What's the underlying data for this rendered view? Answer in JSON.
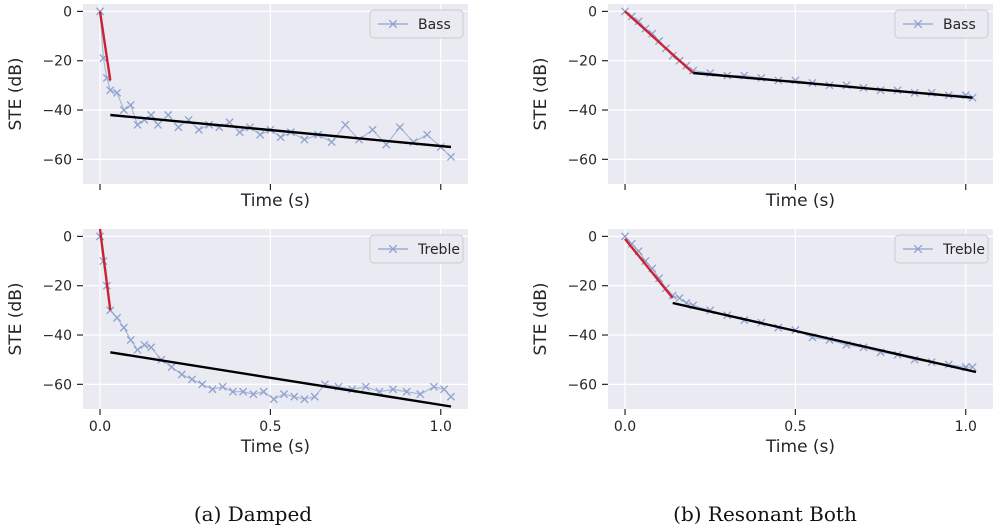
{
  "captions": {
    "left": "(a) Damped",
    "right": "(b) Resonant Both"
  },
  "chart_data": [
    {
      "type": "line",
      "group": "(a) Damped",
      "legend": "Bass",
      "legend_position": "top-right",
      "xlabel": "Time (s)",
      "ylabel": "STE (dB)",
      "xlim": [
        -0.05,
        1.08
      ],
      "ylim": [
        -70,
        3
      ],
      "xticks": [
        0.0,
        0.5,
        1.0
      ],
      "xtick_labels": [
        "",
        "",
        ""
      ],
      "yticks": [
        0,
        -20,
        -40,
        -60
      ],
      "grid": true,
      "series": [
        {
          "name": "Bass",
          "role": "measured",
          "color": "#8ea2cf",
          "marker": "x",
          "x": [
            0.0,
            0.01,
            0.02,
            0.03,
            0.05,
            0.07,
            0.09,
            0.11,
            0.13,
            0.15,
            0.17,
            0.2,
            0.23,
            0.26,
            0.29,
            0.32,
            0.35,
            0.38,
            0.41,
            0.44,
            0.47,
            0.5,
            0.53,
            0.56,
            0.6,
            0.64,
            0.68,
            0.72,
            0.76,
            0.8,
            0.84,
            0.88,
            0.92,
            0.96,
            1.0,
            1.03
          ],
          "y": [
            0,
            -19,
            -27,
            -32,
            -33,
            -40,
            -38,
            -46,
            -44,
            -42,
            -46,
            -42,
            -47,
            -44,
            -48,
            -46,
            -47,
            -45,
            -49,
            -47,
            -50,
            -48,
            -51,
            -49,
            -52,
            -50,
            -53,
            -46,
            -52,
            -48,
            -54,
            -47,
            -53,
            -50,
            -55,
            -59
          ]
        },
        {
          "role": "fit-early",
          "color": "#cc2233",
          "x": [
            0.0,
            0.03
          ],
          "y": [
            0,
            -28
          ]
        },
        {
          "role": "fit-late",
          "color": "#000000",
          "x": [
            0.03,
            1.03
          ],
          "y": [
            -42,
            -55
          ]
        }
      ]
    },
    {
      "type": "line",
      "group": "(a) Damped",
      "legend": "Treble",
      "legend_position": "top-right",
      "xlabel": "Time (s)",
      "ylabel": "STE (dB)",
      "xlim": [
        -0.05,
        1.08
      ],
      "ylim": [
        -70,
        3
      ],
      "xticks": [
        0.0,
        0.5,
        1.0
      ],
      "xtick_labels": [
        "0.0",
        "0.5",
        "1.0"
      ],
      "yticks": [
        0,
        -20,
        -40,
        -60
      ],
      "grid": true,
      "series": [
        {
          "name": "Treble",
          "role": "measured",
          "color": "#8ea2cf",
          "marker": "x",
          "x": [
            0.0,
            0.01,
            0.02,
            0.03,
            0.05,
            0.07,
            0.09,
            0.11,
            0.13,
            0.15,
            0.18,
            0.21,
            0.24,
            0.27,
            0.3,
            0.33,
            0.36,
            0.39,
            0.42,
            0.45,
            0.48,
            0.51,
            0.54,
            0.57,
            0.6,
            0.63,
            0.66,
            0.7,
            0.74,
            0.78,
            0.82,
            0.86,
            0.9,
            0.94,
            0.98,
            1.01,
            1.03
          ],
          "y": [
            0,
            -10,
            -20,
            -30,
            -33,
            -37,
            -42,
            -46,
            -44,
            -45,
            -50,
            -53,
            -56,
            -58,
            -60,
            -62,
            -61,
            -63,
            -63,
            -64,
            -63,
            -66,
            -64,
            -65,
            -66,
            -65,
            -60,
            -61,
            -62,
            -61,
            -63,
            -62,
            -63,
            -64,
            -61,
            -62,
            -65
          ]
        },
        {
          "role": "fit-early",
          "color": "#cc2233",
          "x": [
            0.0,
            0.03
          ],
          "y": [
            3,
            -30
          ]
        },
        {
          "role": "fit-late",
          "color": "#000000",
          "x": [
            0.03,
            1.03
          ],
          "y": [
            -47,
            -69
          ]
        }
      ]
    },
    {
      "type": "line",
      "group": "(b) Resonant Both",
      "legend": "Bass",
      "legend_position": "top-right",
      "xlabel": "Time (s)",
      "ylabel": "STE (dB)",
      "xlim": [
        -0.05,
        1.08
      ],
      "ylim": [
        -70,
        3
      ],
      "xticks": [
        0.0,
        0.5,
        1.0
      ],
      "xtick_labels": [
        "",
        "",
        ""
      ],
      "yticks": [
        0,
        -20,
        -40,
        -60
      ],
      "grid": true,
      "series": [
        {
          "name": "Bass",
          "role": "measured",
          "color": "#8ea2cf",
          "marker": "x",
          "x": [
            0.0,
            0.02,
            0.04,
            0.06,
            0.08,
            0.1,
            0.12,
            0.14,
            0.16,
            0.18,
            0.2,
            0.25,
            0.3,
            0.35,
            0.4,
            0.45,
            0.5,
            0.55,
            0.6,
            0.65,
            0.7,
            0.75,
            0.8,
            0.85,
            0.9,
            0.95,
            1.0,
            1.02
          ],
          "y": [
            0,
            -2,
            -4,
            -7,
            -9,
            -12,
            -15,
            -18,
            -20,
            -22,
            -24,
            -25,
            -26,
            -26,
            -27,
            -28,
            -28,
            -29,
            -30,
            -30,
            -31,
            -32,
            -32,
            -33,
            -33,
            -34,
            -34,
            -35
          ]
        },
        {
          "role": "fit-early",
          "color": "#cc2233",
          "x": [
            0.0,
            0.2
          ],
          "y": [
            0,
            -25
          ]
        },
        {
          "role": "fit-late",
          "color": "#000000",
          "x": [
            0.2,
            1.02
          ],
          "y": [
            -25,
            -35
          ]
        }
      ]
    },
    {
      "type": "line",
      "group": "(b) Resonant Both",
      "legend": "Treble",
      "legend_position": "top-right",
      "xlabel": "Time (s)",
      "ylabel": "STE (dB)",
      "xlim": [
        -0.05,
        1.08
      ],
      "ylim": [
        -70,
        3
      ],
      "xticks": [
        0.0,
        0.5,
        1.0
      ],
      "xtick_labels": [
        "0.0",
        "0.5",
        "1.0"
      ],
      "yticks": [
        0,
        -20,
        -40,
        -60
      ],
      "grid": true,
      "series": [
        {
          "name": "Treble",
          "role": "measured",
          "color": "#8ea2cf",
          "marker": "x",
          "x": [
            0.0,
            0.02,
            0.04,
            0.06,
            0.08,
            0.1,
            0.12,
            0.14,
            0.16,
            0.18,
            0.2,
            0.25,
            0.3,
            0.35,
            0.4,
            0.45,
            0.5,
            0.55,
            0.6,
            0.65,
            0.7,
            0.75,
            0.8,
            0.85,
            0.9,
            0.95,
            1.0,
            1.02
          ],
          "y": [
            0,
            -3,
            -6,
            -10,
            -13,
            -17,
            -21,
            -24,
            -25,
            -27,
            -28,
            -30,
            -32,
            -34,
            -35,
            -37,
            -38,
            -41,
            -42,
            -44,
            -45,
            -47,
            -48,
            -50,
            -51,
            -52,
            -53,
            -53
          ]
        },
        {
          "role": "fit-early",
          "color": "#cc2233",
          "x": [
            0.0,
            0.14
          ],
          "y": [
            -1,
            -25
          ]
        },
        {
          "role": "fit-late",
          "color": "#000000",
          "x": [
            0.14,
            1.03
          ],
          "y": [
            -27,
            -55
          ]
        }
      ]
    }
  ]
}
